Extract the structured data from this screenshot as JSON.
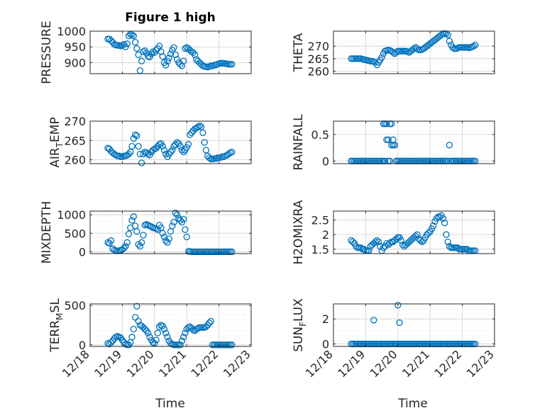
{
  "figure": {
    "title": "Figure 1 high",
    "time_ticks": [
      "12/18",
      "12/19",
      "12/20",
      "12/21",
      "12/22",
      "12/23"
    ],
    "time_label": "Time",
    "colors": {
      "marker": "#0072BD",
      "axis": "#262626",
      "grid": "#d9d9d9",
      "minor_grid": "#ececec"
    }
  },
  "chart_data": [
    {
      "type": "scatter",
      "id": "pressure",
      "ylabel": "PRESSURE",
      "xlim": [
        0,
        5
      ],
      "ylim": [
        865,
        1000
      ],
      "yticks": [
        900,
        950,
        1000
      ],
      "x": [
        0.55,
        0.6,
        0.65,
        0.7,
        0.75,
        0.8,
        0.85,
        0.9,
        0.95,
        1.0,
        1.05,
        1.1,
        1.15,
        1.2,
        1.25,
        1.3,
        1.35,
        1.4,
        1.45,
        1.5,
        1.55,
        1.6,
        1.65,
        1.7,
        1.75,
        1.8,
        1.85,
        1.9,
        1.95,
        2.0,
        2.05,
        2.1,
        2.15,
        2.2,
        2.25,
        2.3,
        2.35,
        2.4,
        2.45,
        2.5,
        2.55,
        2.6,
        2.65,
        2.7,
        2.75,
        2.8,
        2.85,
        2.9,
        2.95,
        3.0,
        3.05,
        3.1,
        3.15,
        3.2,
        3.25,
        3.3,
        3.35,
        3.4,
        3.45,
        3.5,
        3.55,
        3.6,
        3.65,
        3.7,
        3.75,
        3.8,
        3.85,
        3.9,
        3.95,
        4.0,
        4.05,
        4.1,
        4.15,
        4.2,
        4.25,
        4.3,
        4.35,
        4.4
      ],
      "y": [
        975,
        975,
        970,
        965,
        958,
        956,
        955,
        955,
        953,
        955,
        958,
        950,
        960,
        985,
        990,
        988,
        985,
        965,
        945,
        925,
        875,
        905,
        935,
        938,
        930,
        920,
        918,
        928,
        935,
        932,
        940,
        945,
        953,
        935,
        920,
        900,
        892,
        905,
        915,
        928,
        940,
        948,
        925,
        910,
        900,
        895,
        890,
        905,
        945,
        948,
        945,
        940,
        935,
        932,
        925,
        910,
        905,
        900,
        895,
        890,
        888,
        887,
        886,
        888,
        890,
        890,
        892,
        893,
        895,
        897,
        898,
        898,
        898,
        897,
        896,
        895,
        895,
        895
      ]
    },
    {
      "type": "scatter",
      "id": "theta",
      "ylabel": "THETA",
      "xlim": [
        0,
        5
      ],
      "ylim": [
        259,
        276
      ],
      "yticks": [
        260,
        265,
        270
      ],
      "x": [
        0.55,
        0.6,
        0.65,
        0.7,
        0.75,
        0.8,
        0.85,
        0.9,
        0.95,
        1.0,
        1.05,
        1.1,
        1.15,
        1.2,
        1.25,
        1.3,
        1.35,
        1.4,
        1.45,
        1.5,
        1.55,
        1.6,
        1.65,
        1.7,
        1.75,
        1.8,
        1.85,
        1.9,
        1.95,
        2.0,
        2.05,
        2.1,
        2.15,
        2.2,
        2.25,
        2.3,
        2.35,
        2.4,
        2.45,
        2.5,
        2.55,
        2.6,
        2.65,
        2.7,
        2.75,
        2.8,
        2.85,
        2.9,
        2.95,
        3.0,
        3.05,
        3.1,
        3.15,
        3.2,
        3.25,
        3.3,
        3.35,
        3.4,
        3.45,
        3.5,
        3.55,
        3.6,
        3.65,
        3.7,
        3.75,
        3.8,
        3.85,
        3.9,
        3.95,
        4.0,
        4.05,
        4.1,
        4.15,
        4.2,
        4.25,
        4.3,
        4.35,
        4.4
      ],
      "y": [
        265,
        265,
        265,
        265,
        265,
        265,
        265,
        264.8,
        264.6,
        264.5,
        264.3,
        264.2,
        264,
        264,
        263.8,
        263.5,
        262.5,
        263.5,
        264.5,
        265.5,
        267,
        268,
        268.3,
        268.5,
        268.3,
        268,
        267.5,
        267,
        267.5,
        268,
        268,
        268,
        268,
        268,
        268,
        267.8,
        267.5,
        268,
        268.5,
        269,
        269.5,
        269,
        268.5,
        268.5,
        268.7,
        269,
        269.5,
        270,
        270.5,
        271,
        271.5,
        272,
        272.5,
        273,
        273.5,
        274,
        274.5,
        275,
        275,
        275,
        274.5,
        272,
        270.5,
        269.5,
        269,
        269,
        269.2,
        269.5,
        269.5,
        269.5,
        269.5,
        269.5,
        269.5,
        269.3,
        269.5,
        269.7,
        270,
        270.5
      ]
    },
    {
      "type": "scatter",
      "id": "air_temp",
      "ylabel": "AIR_TEMP",
      "xlim": [
        0,
        5
      ],
      "ylim": [
        259,
        270
      ],
      "yticks": [
        260,
        265,
        270
      ],
      "x": [
        0.55,
        0.6,
        0.65,
        0.7,
        0.75,
        0.8,
        0.85,
        0.9,
        0.95,
        1.0,
        1.05,
        1.1,
        1.15,
        1.2,
        1.25,
        1.3,
        1.35,
        1.4,
        1.45,
        1.5,
        1.55,
        1.6,
        1.65,
        1.7,
        1.75,
        1.8,
        1.85,
        1.9,
        1.95,
        2.0,
        2.05,
        2.1,
        2.15,
        2.2,
        2.25,
        2.3,
        2.35,
        2.4,
        2.45,
        2.5,
        2.55,
        2.6,
        2.65,
        2.7,
        2.75,
        2.8,
        2.85,
        2.9,
        2.95,
        3.0,
        3.05,
        3.1,
        3.15,
        3.2,
        3.25,
        3.3,
        3.35,
        3.4,
        3.45,
        3.5,
        3.55,
        3.6,
        3.65,
        3.7,
        3.75,
        3.8,
        3.85,
        3.9,
        3.95,
        4.0,
        4.05,
        4.1,
        4.15,
        4.2,
        4.25,
        4.3,
        4.35,
        4.4
      ],
      "y": [
        263,
        262.8,
        262.2,
        261.8,
        261.5,
        261.2,
        261,
        261,
        260.8,
        260.8,
        261,
        261,
        261.2,
        261.5,
        262,
        263.5,
        265.5,
        266.5,
        266.2,
        263.5,
        261.5,
        259.2,
        261.5,
        262,
        261.8,
        261.5,
        261.2,
        262,
        262.5,
        262.8,
        263,
        263.5,
        264,
        264.2,
        263.5,
        262.5,
        261.5,
        260.8,
        261.5,
        262,
        262.5,
        263.5,
        264,
        264.5,
        264.2,
        263.5,
        262.5,
        262,
        262.5,
        263.2,
        264,
        266.5,
        267,
        267.5,
        268,
        268.2,
        268.5,
        268.8,
        268.5,
        267,
        264.5,
        262.5,
        261,
        260.5,
        260.2,
        260.2,
        260.3,
        260.3,
        260.5,
        260.5,
        260.6,
        260.8,
        260.8,
        261,
        261.2,
        261.5,
        261.8,
        262
      ]
    },
    {
      "type": "scatter",
      "id": "rainfall",
      "ylabel": "RAINFALL",
      "xlim": [
        0,
        5
      ],
      "ylim": [
        -0.05,
        0.75
      ],
      "yticks": [
        0,
        0.5
      ],
      "x": [
        0.55,
        0.6,
        0.65,
        0.7,
        0.75,
        0.8,
        0.85,
        0.9,
        0.95,
        1.0,
        1.05,
        1.1,
        1.15,
        1.2,
        1.25,
        1.3,
        1.35,
        1.4,
        1.45,
        1.5,
        1.55,
        1.6,
        1.65,
        1.7,
        1.75,
        1.8,
        1.85,
        1.9,
        1.95,
        2.0,
        2.05,
        2.1,
        2.15,
        2.2,
        2.25,
        2.3,
        2.35,
        2.4,
        2.45,
        2.5,
        2.55,
        2.6,
        2.65,
        2.7,
        2.75,
        2.8,
        2.85,
        2.9,
        2.95,
        3.0,
        3.05,
        3.1,
        3.15,
        3.2,
        3.25,
        3.3,
        3.35,
        3.4,
        3.45,
        3.5,
        3.55,
        3.6,
        3.65,
        3.7,
        3.75,
        3.8,
        3.85,
        3.9,
        3.95,
        4.0,
        4.05,
        4.1,
        4.15,
        4.2,
        4.25,
        4.3,
        4.35,
        4.4,
        1.55,
        1.6,
        1.65,
        1.75,
        1.8,
        1.85,
        1.9,
        1.7
      ],
      "y": [
        0,
        0,
        0,
        0,
        0,
        0,
        0,
        0,
        0,
        0,
        0,
        0,
        0,
        0,
        0,
        0,
        0,
        0,
        0,
        0,
        0,
        0,
        0.7,
        0.4,
        0,
        0.3,
        0.3,
        0.3,
        0,
        0,
        0,
        0,
        0,
        0,
        0,
        0,
        0,
        0,
        0,
        0,
        0,
        0,
        0,
        0,
        0,
        0,
        0,
        0,
        0,
        0,
        0,
        0,
        0,
        0,
        0,
        0,
        0,
        0,
        0,
        0,
        0,
        0.3,
        0,
        0,
        0,
        0,
        0,
        0,
        0,
        0,
        0,
        0,
        0,
        0,
        0,
        0,
        0,
        0,
        0.7,
        0.7,
        0.4,
        0.7,
        0.7,
        0.4,
        0.3,
        0
      ]
    },
    {
      "type": "scatter",
      "id": "mixdepth",
      "ylabel": "MIXDEPTH",
      "xlim": [
        0,
        5
      ],
      "ylim": [
        -50,
        1100
      ],
      "yticks": [
        0,
        500,
        1000
      ],
      "x": [
        0.55,
        0.6,
        0.65,
        0.7,
        0.75,
        0.8,
        0.85,
        0.9,
        0.95,
        1.0,
        1.05,
        1.1,
        1.15,
        1.2,
        1.25,
        1.3,
        1.35,
        1.4,
        1.45,
        1.5,
        1.55,
        1.6,
        1.65,
        1.7,
        1.75,
        1.8,
        1.85,
        1.9,
        1.95,
        2.0,
        2.05,
        2.1,
        2.15,
        2.2,
        2.25,
        2.3,
        2.35,
        2.4,
        2.45,
        2.5,
        2.55,
        2.6,
        2.65,
        2.7,
        2.75,
        2.8,
        2.85,
        2.9,
        2.95,
        3.0,
        3.05,
        3.1,
        3.15,
        3.2,
        3.25,
        3.3,
        3.35,
        3.4,
        3.45,
        3.5,
        3.55,
        3.6,
        3.65,
        3.7,
        3.75,
        3.8,
        3.85,
        3.9,
        3.95,
        4.0,
        4.05,
        4.1,
        4.15,
        4.2,
        4.25,
        4.3,
        4.35,
        4.4
      ],
      "y": [
        250,
        230,
        300,
        80,
        50,
        30,
        20,
        30,
        40,
        60,
        100,
        150,
        250,
        480,
        650,
        850,
        950,
        700,
        550,
        200,
        150,
        250,
        450,
        720,
        740,
        720,
        700,
        680,
        650,
        640,
        620,
        600,
        720,
        650,
        500,
        400,
        300,
        250,
        350,
        550,
        700,
        800,
        1050,
        1000,
        900,
        850,
        800,
        880,
        600,
        400,
        10,
        10,
        0,
        0,
        0,
        0,
        0,
        0,
        0,
        0,
        0,
        0,
        0,
        0,
        0,
        0,
        0,
        0,
        0,
        0,
        0,
        0,
        0,
        0,
        0,
        0,
        0,
        0
      ]
    },
    {
      "type": "scatter",
      "id": "h2omixra",
      "ylabel": "H2OMIXRA",
      "xlim": [
        0,
        5
      ],
      "ylim": [
        1.35,
        2.8
      ],
      "yticks": [
        1.5,
        2,
        2.5
      ],
      "x": [
        0.55,
        0.6,
        0.65,
        0.7,
        0.75,
        0.8,
        0.85,
        0.9,
        0.95,
        1.0,
        1.05,
        1.1,
        1.15,
        1.2,
        1.25,
        1.3,
        1.35,
        1.4,
        1.45,
        1.5,
        1.55,
        1.6,
        1.65,
        1.7,
        1.75,
        1.8,
        1.85,
        1.9,
        1.95,
        2.0,
        2.05,
        2.1,
        2.15,
        2.2,
        2.25,
        2.3,
        2.35,
        2.4,
        2.45,
        2.5,
        2.55,
        2.6,
        2.65,
        2.7,
        2.75,
        2.8,
        2.85,
        2.9,
        2.95,
        3.0,
        3.05,
        3.1,
        3.15,
        3.2,
        3.25,
        3.3,
        3.35,
        3.4,
        3.45,
        3.5,
        3.55,
        3.6,
        3.65,
        3.7,
        3.75,
        3.8,
        3.85,
        3.9,
        3.95,
        4.0,
        4.05,
        4.1,
        4.15,
        4.2,
        4.25,
        4.3,
        4.35,
        4.4
      ],
      "y": [
        1.8,
        1.75,
        1.7,
        1.6,
        1.55,
        1.55,
        1.55,
        1.5,
        1.5,
        1.45,
        1.45,
        1.45,
        1.6,
        1.65,
        1.7,
        1.75,
        1.8,
        1.75,
        1.6,
        1.45,
        1.55,
        1.6,
        1.7,
        1.65,
        1.7,
        1.75,
        1.75,
        1.8,
        1.85,
        1.9,
        1.9,
        1.8,
        1.65,
        1.6,
        1.65,
        1.7,
        1.75,
        1.8,
        1.85,
        1.9,
        1.95,
        2.0,
        1.85,
        1.8,
        1.75,
        1.8,
        1.9,
        2.0,
        2.05,
        2.1,
        2.2,
        2.3,
        2.45,
        2.55,
        2.6,
        2.6,
        2.65,
        2.55,
        2.4,
        2.0,
        1.75,
        1.6,
        1.55,
        1.55,
        1.55,
        1.55,
        1.55,
        1.5,
        1.5,
        1.5,
        1.5,
        1.5,
        1.5,
        1.45,
        1.45,
        1.45,
        1.45,
        1.45
      ]
    },
    {
      "type": "scatter",
      "id": "terr_msl",
      "ylabel": "TERR_MSL",
      "xlim": [
        0,
        5
      ],
      "ylim": [
        -20,
        520
      ],
      "yticks": [
        0,
        500
      ],
      "x": [
        0.55,
        0.6,
        0.65,
        0.7,
        0.75,
        0.8,
        0.85,
        0.9,
        0.95,
        1.0,
        1.05,
        1.1,
        1.15,
        1.2,
        1.25,
        1.3,
        1.35,
        1.4,
        1.45,
        1.5,
        1.55,
        1.6,
        1.65,
        1.7,
        1.75,
        1.8,
        1.85,
        1.9,
        1.95,
        2.0,
        2.05,
        2.1,
        2.15,
        2.2,
        2.25,
        2.3,
        2.35,
        2.4,
        2.45,
        2.5,
        2.55,
        2.6,
        2.65,
        2.7,
        2.75,
        2.8,
        2.85,
        2.9,
        2.95,
        3.0,
        3.05,
        3.1,
        3.15,
        3.2,
        3.25,
        3.3,
        3.35,
        3.4,
        3.45,
        3.5,
        3.55,
        3.6,
        3.65,
        3.7,
        3.75,
        3.8,
        3.85,
        3.9,
        3.95,
        4.0,
        4.05,
        4.1,
        4.15,
        4.2,
        4.25,
        4.3,
        4.35,
        4.4
      ],
      "y": [
        20,
        10,
        30,
        50,
        80,
        100,
        110,
        100,
        90,
        60,
        30,
        10,
        0,
        0,
        30,
        100,
        200,
        350,
        490,
        300,
        250,
        240,
        220,
        200,
        180,
        150,
        100,
        60,
        30,
        20,
        60,
        150,
        230,
        250,
        240,
        200,
        150,
        100,
        50,
        20,
        10,
        0,
        0,
        0,
        0,
        0,
        50,
        100,
        150,
        200,
        220,
        230,
        210,
        190,
        180,
        200,
        210,
        220,
        220,
        220,
        220,
        230,
        250,
        280,
        300,
        0,
        0,
        0,
        0,
        0,
        0,
        0,
        0,
        0,
        0,
        0,
        0,
        0
      ]
    },
    {
      "type": "scatter",
      "id": "sun_flux",
      "ylabel": "SUN_FLUX",
      "xlim": [
        0,
        5
      ],
      "ylim": [
        -0.2,
        3.2
      ],
      "yticks": [
        0,
        2
      ],
      "x": [
        0.55,
        0.6,
        0.65,
        0.7,
        0.75,
        0.8,
        0.85,
        0.9,
        0.95,
        1.0,
        1.05,
        1.1,
        1.15,
        1.2,
        1.25,
        1.3,
        1.35,
        1.4,
        1.45,
        1.5,
        1.55,
        1.6,
        1.65,
        1.7,
        1.75,
        1.8,
        1.85,
        1.9,
        1.95,
        2.0,
        2.05,
        2.1,
        2.15,
        2.2,
        2.25,
        2.3,
        2.35,
        2.4,
        2.45,
        2.5,
        2.55,
        2.6,
        2.65,
        2.7,
        2.75,
        2.8,
        2.85,
        2.9,
        2.95,
        3.0,
        3.05,
        3.1,
        3.15,
        3.2,
        3.25,
        3.3,
        3.35,
        3.4,
        3.45,
        3.5,
        3.55,
        3.6,
        3.65,
        3.7,
        3.75,
        3.8,
        3.85,
        3.9,
        3.95,
        4.0,
        4.05,
        4.1,
        4.15,
        4.2,
        4.25,
        4.3,
        4.35,
        4.4,
        1.25,
        2.0,
        2.05
      ],
      "y": [
        0,
        0,
        0,
        0,
        0,
        0,
        0,
        0,
        0,
        0,
        0,
        0,
        0,
        0,
        0,
        0,
        0,
        0,
        0,
        0,
        0,
        0,
        0,
        0,
        0,
        0,
        0,
        0,
        0,
        0,
        0,
        0,
        0,
        0,
        0,
        0,
        0,
        0,
        0,
        0,
        0,
        0,
        0,
        0,
        0,
        0,
        0,
        0,
        0,
        0,
        0,
        0,
        0,
        0,
        0,
        0,
        0,
        0,
        0,
        0,
        0,
        0,
        0,
        0,
        0,
        0,
        0,
        0,
        0,
        0,
        0,
        0,
        0,
        0,
        0,
        0,
        0,
        0,
        1.9,
        3.1,
        1.7
      ]
    }
  ]
}
